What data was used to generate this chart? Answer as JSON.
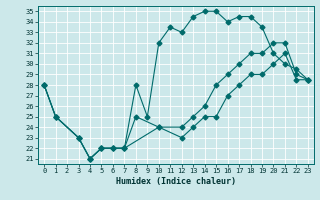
{
  "xlabel": "Humidex (Indice chaleur)",
  "bg_color": "#cce8ea",
  "grid_color": "#ffffff",
  "line_color": "#006b6b",
  "xlim": [
    -0.5,
    23.5
  ],
  "ylim": [
    20.5,
    35.5
  ],
  "xticks": [
    0,
    1,
    2,
    3,
    4,
    5,
    6,
    7,
    8,
    9,
    10,
    11,
    12,
    13,
    14,
    15,
    16,
    17,
    18,
    19,
    20,
    21,
    22,
    23
  ],
  "yticks": [
    21,
    22,
    23,
    24,
    25,
    26,
    27,
    28,
    29,
    30,
    31,
    32,
    33,
    34,
    35
  ],
  "line1_x": [
    0,
    1,
    3,
    4,
    5,
    6,
    7,
    8,
    9,
    10,
    11,
    12,
    13,
    14,
    15,
    16,
    17,
    18,
    19,
    20,
    21,
    22,
    23
  ],
  "line1_y": [
    28,
    25,
    23,
    21,
    22,
    22,
    22,
    28,
    25,
    32,
    33.5,
    33,
    34.5,
    35,
    35,
    34,
    34.5,
    34.5,
    33.5,
    31,
    30,
    29.5,
    28.5
  ],
  "line2_x": [
    0,
    1,
    3,
    4,
    5,
    6,
    7,
    8,
    10,
    12,
    13,
    14,
    15,
    16,
    17,
    18,
    19,
    20,
    21,
    22,
    23
  ],
  "line2_y": [
    28,
    25,
    23,
    21,
    22,
    22,
    22,
    25,
    24,
    24,
    25,
    26,
    28,
    29,
    30,
    31,
    31,
    32,
    32,
    29,
    28.5
  ],
  "line3_x": [
    0,
    1,
    3,
    4,
    5,
    6,
    7,
    10,
    12,
    13,
    14,
    15,
    16,
    17,
    18,
    19,
    20,
    21,
    22,
    23
  ],
  "line3_y": [
    28,
    25,
    23,
    21,
    22,
    22,
    22,
    24,
    23,
    24,
    25,
    25,
    27,
    28,
    29,
    29,
    30,
    31,
    28.5,
    28.5
  ],
  "tick_fontsize": 5,
  "xlabel_fontsize": 6,
  "lw": 0.8,
  "ms": 2.5
}
